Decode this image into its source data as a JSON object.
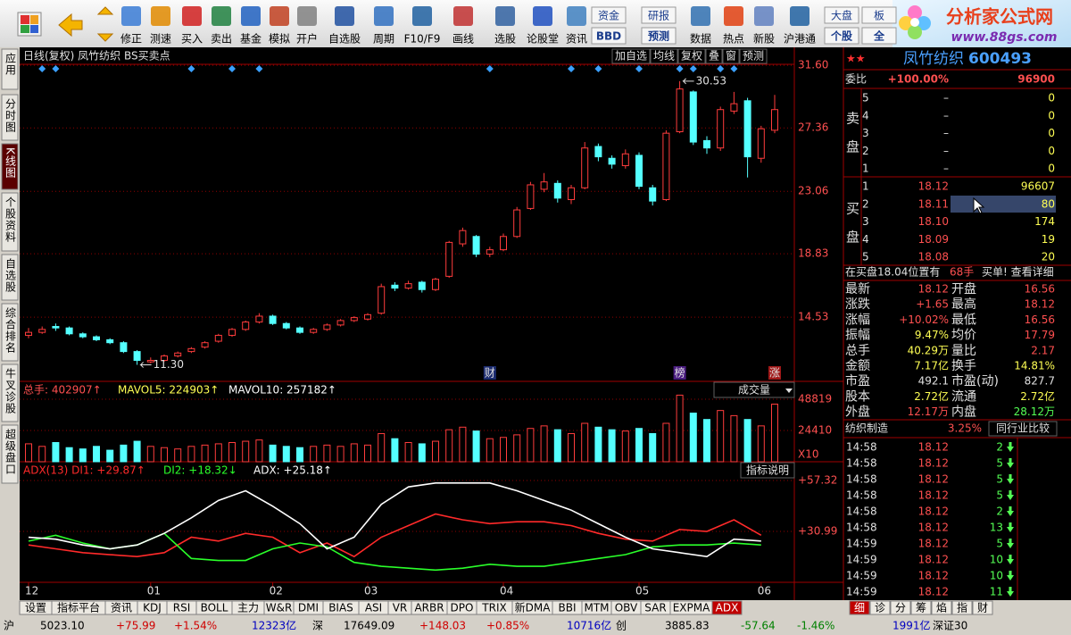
{
  "toolbar": [
    "修正",
    "测速",
    "买入",
    "卖出",
    "基金",
    "模拟",
    "开户",
    "自选股",
    "周期",
    "F10/F9",
    "画线",
    "选股",
    "论股堂",
    "资讯",
    "数据",
    "热点",
    "新股",
    "沪港通"
  ],
  "toolbar_pairs": [
    [
      "资金",
      "BBD"
    ],
    [
      "研报",
      "预测"
    ],
    [
      "大盘",
      "个股"
    ],
    [
      "板",
      "全"
    ]
  ],
  "logo": {
    "name": "分析家公式网",
    "url": "www.88gs.com"
  },
  "sidebar": [
    "应用",
    "分时图",
    "K线图",
    "个股资料",
    "自选股",
    "综合排名",
    "牛叉诊股",
    "超级盘口"
  ],
  "chart_header": "日线(复权)  凤竹纺织  BS买卖点",
  "chart_buttons": [
    "加自选",
    "均线",
    "复权",
    "叠",
    "窗",
    "预测"
  ],
  "volume_button": "成交量",
  "indicator_button": "指标说明",
  "chart_data": [
    {
      "type": "candlestick",
      "open": [
        13.3,
        13.5,
        13.9,
        13.8,
        13.4,
        13.2,
        13.0,
        12.8,
        12.2,
        11.5,
        11.6,
        11.9,
        12.2,
        12.5,
        12.9,
        13.3,
        13.7,
        14.2,
        14.6,
        14.1,
        13.8,
        13.5,
        13.7,
        14.0,
        14.3,
        14.4,
        14.8,
        16.7,
        16.5,
        16.9,
        16.4,
        17.3,
        19.5,
        20.0,
        18.8,
        19.1,
        20.0,
        21.9,
        23.2,
        23.6,
        22.5,
        23.3,
        26.1,
        25.3,
        24.8,
        25.5,
        23.3,
        22.5,
        27.1,
        29.8,
        26.5,
        26.0,
        28.5,
        29.2,
        25.3,
        27.2
      ],
      "high": [
        13.8,
        13.9,
        14.1,
        13.9,
        13.5,
        13.3,
        13.1,
        12.9,
        12.3,
        11.8,
        12.0,
        12.2,
        12.5,
        12.9,
        13.4,
        13.8,
        14.3,
        14.8,
        14.7,
        14.2,
        13.9,
        13.8,
        14.1,
        14.4,
        14.6,
        14.8,
        16.8,
        16.9,
        17.0,
        17.0,
        17.2,
        19.7,
        20.6,
        20.1,
        19.3,
        20.2,
        22.0,
        23.7,
        24.3,
        23.8,
        23.5,
        26.4,
        26.3,
        25.5,
        25.9,
        25.7,
        23.5,
        27.2,
        30.53,
        29.9,
        26.8,
        28.8,
        29.8,
        29.4,
        27.5,
        29.6
      ],
      "low": [
        13.1,
        13.4,
        13.6,
        13.3,
        13.1,
        12.9,
        12.7,
        12.1,
        11.3,
        11.4,
        11.5,
        11.8,
        12.1,
        12.4,
        12.8,
        13.2,
        13.6,
        14.1,
        14.0,
        13.7,
        13.4,
        13.4,
        13.6,
        13.9,
        14.2,
        14.3,
        14.7,
        16.3,
        16.4,
        16.2,
        16.3,
        17.2,
        19.3,
        18.6,
        18.6,
        19.0,
        19.9,
        21.8,
        23.0,
        22.3,
        22.2,
        23.2,
        25.1,
        24.6,
        24.6,
        23.2,
        22.1,
        22.4,
        27.0,
        26.2,
        25.6,
        25.8,
        28.3,
        24.0,
        25.0,
        27.0
      ],
      "close": [
        13.5,
        13.7,
        13.8,
        13.4,
        13.2,
        13.0,
        12.8,
        12.2,
        11.6,
        11.6,
        11.9,
        12.1,
        12.4,
        12.8,
        13.3,
        13.7,
        14.2,
        14.6,
        14.1,
        13.8,
        13.5,
        13.7,
        14.0,
        14.3,
        14.5,
        14.7,
        16.6,
        16.5,
        16.8,
        16.4,
        17.1,
        19.6,
        20.4,
        18.8,
        19.1,
        20.0,
        21.8,
        23.5,
        23.7,
        22.6,
        23.3,
        26.0,
        25.4,
        24.9,
        25.6,
        23.4,
        22.4,
        27.0,
        30.0,
        26.4,
        26.0,
        28.6,
        29.0,
        25.4,
        27.3,
        28.6
      ],
      "up_color": "#ff3c3c",
      "down_color": "#54ffff",
      "ylim": [
        10.3,
        32.7
      ],
      "yticks": [
        {
          "value": 31.6,
          "label": "31.60"
        },
        27.36,
        23.06,
        18.83,
        14.53
      ],
      "annotations": [
        {
          "index": 48,
          "value": 30.53,
          "label": "30.53"
        },
        {
          "index": 8,
          "value": 11.3,
          "label": "11.30"
        }
      ],
      "signals": [
        1,
        2,
        12,
        15,
        17,
        34,
        40,
        42,
        45,
        48,
        49,
        51,
        52
      ],
      "events": [
        {
          "index": 34,
          "label": "财"
        },
        {
          "index": 48,
          "label": "榜"
        },
        {
          "index": 55,
          "label": "涨"
        }
      ],
      "month_ticks": [
        {
          "value": 0,
          "label": "12"
        },
        {
          "value": 9,
          "label": "01"
        },
        {
          "value": 18,
          "label": "02"
        },
        {
          "value": 25,
          "label": "03"
        },
        {
          "value": 35,
          "label": "04"
        },
        {
          "value": 45,
          "label": "05"
        },
        {
          "value": 54,
          "label": "06"
        }
      ]
    },
    {
      "type": "bar",
      "values": [
        14000,
        12000,
        15000,
        11000,
        10000,
        12000,
        9000,
        13000,
        16000,
        12000,
        11000,
        10000,
        12000,
        13000,
        14000,
        15000,
        16000,
        17000,
        13000,
        12000,
        11000,
        12000,
        13000,
        12000,
        14000,
        13000,
        22000,
        18000,
        15000,
        14000,
        16000,
        25000,
        27000,
        24000,
        18000,
        19000,
        21000,
        26000,
        28000,
        25000,
        22000,
        30000,
        27000,
        25000,
        24000,
        26000,
        22000,
        30000,
        52000,
        38000,
        33000,
        40000,
        36000,
        33000,
        28000,
        45000
      ],
      "ylim": [
        0,
        60680
      ],
      "yticks": [
        48819,
        24410
      ],
      "unit": "X10",
      "legend": [
        {
          "text": "总手: 402907↑",
          "color": "#ff5050"
        },
        {
          "text": "MAVOL5: 224903↑",
          "color": "#ffff54"
        },
        {
          "text": "MAVOL10: 257182↑",
          "color": "#ffffff"
        }
      ]
    },
    {
      "type": "line",
      "series": [
        {
          "name": "ADX(13) DI1: +29.87↑",
          "color": "#ff2a2a",
          "values": [
            24,
            22,
            20,
            19,
            18,
            20,
            28,
            26,
            30,
            28,
            20,
            25,
            18,
            28,
            34,
            40,
            37,
            35,
            36,
            36,
            34,
            30,
            27,
            26,
            32,
            31,
            37,
            29
          ]
        },
        {
          "name": "DI2: +18.32↓",
          "color": "#2aff2a",
          "values": [
            26,
            29,
            25,
            22,
            24,
            30,
            17,
            16,
            16,
            22,
            25,
            23,
            15,
            13,
            12,
            11,
            12,
            14,
            13,
            13,
            15,
            17,
            19,
            23,
            24,
            24,
            25,
            24
          ]
        },
        {
          "name": "ADX: +25.18↑",
          "color": "#ffffff",
          "values": [
            28,
            27,
            24,
            22,
            24,
            30,
            38,
            47,
            52,
            44,
            35,
            22,
            28,
            45,
            54,
            56,
            56,
            56,
            52,
            47,
            42,
            35,
            28,
            22,
            20,
            18,
            27,
            26
          ]
        }
      ],
      "ylim": [
        4.7,
        64.7
      ],
      "yticks": [
        {
          "value": 57.32,
          "label": "+57.32"
        },
        {
          "value": 30.99,
          "label": "+30.99"
        }
      ]
    }
  ],
  "stock": {
    "name": "凤竹纺织",
    "code": "600493"
  },
  "weibi": [
    "委比",
    "+100.00%",
    "96900"
  ],
  "sell_label": [
    "卖",
    "盘"
  ],
  "buy_label": [
    "买",
    "盘"
  ],
  "sell": [
    [
      "5",
      "–",
      "0"
    ],
    [
      "4",
      "–",
      "0"
    ],
    [
      "3",
      "–",
      "0"
    ],
    [
      "2",
      "–",
      "0"
    ],
    [
      "1",
      "–",
      "0"
    ]
  ],
  "buy": [
    [
      "1",
      "18.12",
      "96607"
    ],
    [
      "2",
      "18.11",
      "80"
    ],
    [
      "3",
      "18.10",
      "174"
    ],
    [
      "4",
      "18.09",
      "19"
    ],
    [
      "5",
      "18.08",
      "20"
    ]
  ],
  "position_line": [
    "在买盘18.04位置有",
    "68手",
    "买单! 查看详细"
  ],
  "stats": [
    [
      "最新",
      "18.12",
      "开盘",
      "16.56"
    ],
    [
      "涨跌",
      "+1.65",
      "最高",
      "18.12"
    ],
    [
      "涨幅",
      "+10.02%",
      "最低",
      "16.56"
    ],
    [
      "振幅",
      "9.47%",
      "均价",
      "17.79"
    ],
    [
      "总手",
      "40.29万",
      "量比",
      "2.17"
    ],
    [
      "金额",
      "7.17亿",
      "换手",
      "14.81%"
    ],
    [
      "市盈",
      "492.1",
      "市盈(动)",
      "827.7"
    ],
    [
      "股本",
      "2.72亿",
      "流通",
      "2.72亿"
    ],
    [
      "外盘",
      "12.17万",
      "内盘",
      "28.12万"
    ]
  ],
  "industry": [
    "纺织制造",
    "3.25%",
    "同行业比较"
  ],
  "trades": [
    [
      "14:58",
      "18.12",
      "2"
    ],
    [
      "14:58",
      "18.12",
      "5"
    ],
    [
      "14:58",
      "18.12",
      "5"
    ],
    [
      "14:58",
      "18.12",
      "5"
    ],
    [
      "14:58",
      "18.12",
      "2"
    ],
    [
      "14:58",
      "18.12",
      "13"
    ],
    [
      "14:59",
      "18.12",
      "5"
    ],
    [
      "14:59",
      "18.12",
      "10"
    ],
    [
      "14:59",
      "18.12",
      "10"
    ],
    [
      "14:59",
      "18.12",
      "11"
    ]
  ],
  "tabs": [
    "设置",
    "指标平台",
    "资讯",
    "KDJ",
    "RSI",
    "BOLL",
    "主力",
    "W&R",
    "DMI",
    "BIAS",
    "ASI",
    "VR",
    "ARBR",
    "DPO",
    "TRIX",
    "新DMA",
    "BBI",
    "MTM",
    "OBV",
    "SAR",
    "EXPMA",
    "ADX"
  ],
  "active_tab": "ADX",
  "right_tabs": [
    "细",
    "诊",
    "分",
    "筹",
    "焰",
    "指",
    "财"
  ],
  "status": [
    "沪",
    "5023.10",
    "+75.99",
    "+1.54%",
    "12323亿",
    "深",
    "17649.09",
    "+148.03",
    "+0.85%",
    "10716亿",
    "创",
    "3885.83",
    "-57.64",
    "-1.46%",
    "1991亿",
    "深证30"
  ]
}
